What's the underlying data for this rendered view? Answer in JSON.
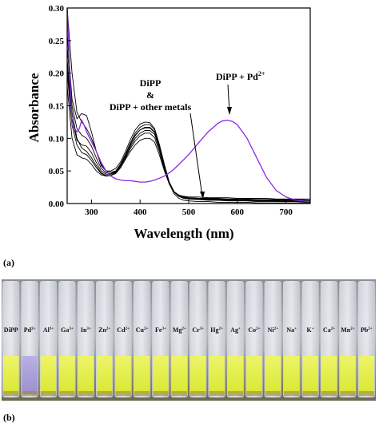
{
  "chart_data": {
    "type": "line",
    "xlabel": "Wavelength (nm)",
    "ylabel": "Absorbance",
    "xlim": [
      250,
      750
    ],
    "ylim": [
      0,
      0.3
    ],
    "xticks": [
      300,
      400,
      500,
      600,
      700
    ],
    "yticks": [
      0.0,
      0.05,
      0.1,
      0.15,
      0.2,
      0.25,
      0.3
    ],
    "ytick_labels": [
      "0.00",
      "0.05",
      "0.10",
      "0.15",
      "0.20",
      "0.25",
      "0.30"
    ],
    "grid": false,
    "annotations": {
      "free_ligand": [
        "DiPP",
        "&",
        "DiPP + other metals"
      ],
      "pd_complex": "DiPP + Pd"
    },
    "series": [
      {
        "x": [
          250,
          260,
          270,
          280,
          290,
          300,
          310,
          320,
          330,
          340,
          350,
          360,
          370,
          380,
          390,
          400,
          410,
          420,
          430,
          440,
          450,
          460,
          470,
          480,
          490,
          500,
          520,
          540,
          560,
          580,
          600,
          620,
          640,
          660,
          680,
          700,
          720,
          750
        ],
        "values": [
          0.3,
          0.2,
          0.14,
          0.125,
          0.115,
          0.1,
          0.08,
          0.06,
          0.05,
          0.048,
          0.05,
          0.06,
          0.075,
          0.09,
          0.105,
          0.113,
          0.117,
          0.117,
          0.11,
          0.085,
          0.055,
          0.03,
          0.015,
          0.008,
          0.005,
          0.004,
          0.003,
          0.003,
          0.002,
          0.002,
          0.002,
          0.002,
          0.001,
          0.001,
          0.001,
          0.001,
          0.001,
          0.001
        ]
      },
      {
        "x": [
          250,
          260,
          270,
          280,
          290,
          300,
          310,
          320,
          330,
          340,
          350,
          360,
          370,
          380,
          390,
          400,
          410,
          420,
          430,
          440,
          450,
          460,
          470,
          480,
          490,
          500,
          520,
          540,
          560,
          580,
          600,
          620,
          640,
          660,
          680,
          700,
          720,
          750
        ],
        "values": [
          0.26,
          0.16,
          0.13,
          0.138,
          0.135,
          0.11,
          0.08,
          0.058,
          0.05,
          0.05,
          0.054,
          0.064,
          0.08,
          0.098,
          0.113,
          0.122,
          0.125,
          0.124,
          0.115,
          0.09,
          0.06,
          0.033,
          0.018,
          0.011,
          0.008,
          0.007,
          0.006,
          0.005,
          0.005,
          0.004,
          0.004,
          0.004,
          0.003,
          0.003,
          0.003,
          0.003,
          0.003,
          0.002
        ]
      },
      {
        "x": [
          250,
          260,
          270,
          280,
          290,
          300,
          310,
          320,
          330,
          340,
          350,
          360,
          370,
          380,
          390,
          400,
          410,
          420,
          430,
          440,
          450,
          460,
          470,
          480,
          490,
          500,
          520,
          540,
          560,
          580,
          600,
          620,
          640,
          660,
          680,
          700,
          720,
          750
        ],
        "values": [
          0.22,
          0.14,
          0.1,
          0.085,
          0.08,
          0.07,
          0.058,
          0.047,
          0.043,
          0.043,
          0.048,
          0.058,
          0.072,
          0.087,
          0.1,
          0.108,
          0.112,
          0.112,
          0.106,
          0.083,
          0.055,
          0.032,
          0.018,
          0.012,
          0.01,
          0.009,
          0.008,
          0.008,
          0.007,
          0.007,
          0.006,
          0.006,
          0.006,
          0.005,
          0.005,
          0.005,
          0.005,
          0.004
        ]
      },
      {
        "x": [
          250,
          260,
          270,
          280,
          290,
          300,
          310,
          320,
          330,
          340,
          350,
          360,
          370,
          380,
          390,
          400,
          410,
          420,
          430,
          440,
          450,
          460,
          470,
          480,
          490,
          500,
          520,
          540,
          560,
          580,
          600,
          620,
          640,
          660,
          680,
          700,
          720,
          750
        ],
        "values": [
          0.2,
          0.12,
          0.09,
          0.078,
          0.075,
          0.066,
          0.055,
          0.046,
          0.042,
          0.043,
          0.047,
          0.057,
          0.07,
          0.084,
          0.096,
          0.104,
          0.108,
          0.108,
          0.101,
          0.079,
          0.052,
          0.03,
          0.017,
          0.012,
          0.01,
          0.009,
          0.008,
          0.008,
          0.008,
          0.007,
          0.007,
          0.007,
          0.006,
          0.006,
          0.006,
          0.006,
          0.006,
          0.005
        ]
      },
      {
        "x": [
          250,
          260,
          270,
          280,
          290,
          300,
          310,
          320,
          330,
          340,
          350,
          360,
          370,
          380,
          390,
          400,
          410,
          420,
          430,
          440,
          450,
          460,
          470,
          480,
          490,
          500,
          520,
          540,
          560,
          580,
          600,
          620,
          640,
          660,
          680,
          700,
          720,
          750
        ],
        "values": [
          0.18,
          0.1,
          0.075,
          0.07,
          0.068,
          0.06,
          0.05,
          0.044,
          0.042,
          0.043,
          0.046,
          0.055,
          0.068,
          0.08,
          0.09,
          0.097,
          0.1,
          0.1,
          0.094,
          0.074,
          0.05,
          0.03,
          0.018,
          0.013,
          0.011,
          0.01,
          0.01,
          0.009,
          0.009,
          0.009,
          0.008,
          0.008,
          0.008,
          0.008,
          0.007,
          0.007,
          0.007,
          0.007
        ]
      },
      {
        "x": [
          250,
          260,
          270,
          280,
          290,
          300,
          310,
          320,
          330,
          340,
          350,
          360,
          370,
          380,
          390,
          400,
          410,
          420,
          430,
          440,
          450,
          460,
          470,
          480,
          490,
          500,
          520,
          540,
          560,
          580,
          600,
          620,
          640,
          660,
          680,
          700,
          720,
          750
        ],
        "values": [
          0.24,
          0.15,
          0.115,
          0.105,
          0.1,
          0.088,
          0.07,
          0.054,
          0.047,
          0.046,
          0.05,
          0.061,
          0.076,
          0.093,
          0.108,
          0.117,
          0.121,
          0.121,
          0.113,
          0.088,
          0.058,
          0.032,
          0.018,
          0.011,
          0.008,
          0.007,
          0.006,
          0.006,
          0.005,
          0.005,
          0.005,
          0.004,
          0.004,
          0.004,
          0.004,
          0.003,
          0.003,
          0.003
        ]
      },
      {
        "x": [
          250,
          260,
          270,
          280,
          290,
          300,
          310,
          320,
          330,
          340,
          350,
          360,
          370,
          380,
          390,
          400,
          410,
          420,
          430,
          440,
          450,
          460,
          470,
          480,
          490,
          500,
          520,
          540,
          560,
          580,
          600,
          620,
          640,
          660,
          680,
          700,
          720,
          750
        ],
        "values": [
          0.21,
          0.13,
          0.097,
          0.09,
          0.088,
          0.078,
          0.063,
          0.05,
          0.045,
          0.045,
          0.049,
          0.059,
          0.074,
          0.09,
          0.104,
          0.113,
          0.116,
          0.116,
          0.109,
          0.085,
          0.056,
          0.031,
          0.017,
          0.011,
          0.009,
          0.008,
          0.007,
          0.007,
          0.006,
          0.006,
          0.006,
          0.005,
          0.005,
          0.005,
          0.005,
          0.004,
          0.004,
          0.004
        ]
      },
      {
        "x": [
          250,
          260,
          270,
          275,
          280,
          285,
          290,
          300,
          310,
          320,
          330,
          340,
          350,
          360,
          370,
          380,
          390,
          400,
          410,
          420,
          430,
          440,
          450,
          460,
          470,
          480,
          500,
          520,
          540,
          560,
          570,
          580,
          590,
          600,
          620,
          640,
          660,
          680,
          700,
          720,
          750
        ],
        "values": [
          0.3,
          0.12,
          0.11,
          0.115,
          0.128,
          0.12,
          0.11,
          0.095,
          0.08,
          0.063,
          0.05,
          0.042,
          0.038,
          0.036,
          0.035,
          0.035,
          0.034,
          0.033,
          0.033,
          0.034,
          0.036,
          0.039,
          0.042,
          0.047,
          0.053,
          0.06,
          0.075,
          0.093,
          0.11,
          0.123,
          0.127,
          0.128,
          0.126,
          0.121,
          0.1,
          0.07,
          0.04,
          0.02,
          0.01,
          0.005,
          0.003
        ]
      }
    ]
  },
  "annotation_text": {
    "dipp": "DiPP",
    "amp": "&",
    "other": "DiPP + other metals",
    "pd": "DiPP + Pd",
    "pd_sup": "2+"
  },
  "colors": {
    "ligand": "#000000",
    "pd_complex": "#8a2be2",
    "solution_yellow": "#d8e830",
    "solution_violet": "#9c8fd0"
  },
  "panels": {
    "a": "(a)",
    "b": "(b)"
  },
  "photo": {
    "vials": [
      "DiPP",
      "Pd",
      "Al",
      "Ga",
      "In",
      "Zn",
      "Cd",
      "Cu",
      "Fe",
      "Mg",
      "Cr",
      "Hg",
      "Ag",
      "Co",
      "Ni",
      "Na",
      "K",
      "Ca",
      "Mn",
      "Pb"
    ],
    "charges": [
      "",
      "2+",
      "3+",
      "3+",
      "3+",
      "2+",
      "2+",
      "2+",
      "3+",
      "2+",
      "3+",
      "2+",
      "+",
      "2+",
      "2+",
      "+",
      "+",
      "2+",
      "2+",
      "2+"
    ],
    "violet_vial": "Pd"
  }
}
